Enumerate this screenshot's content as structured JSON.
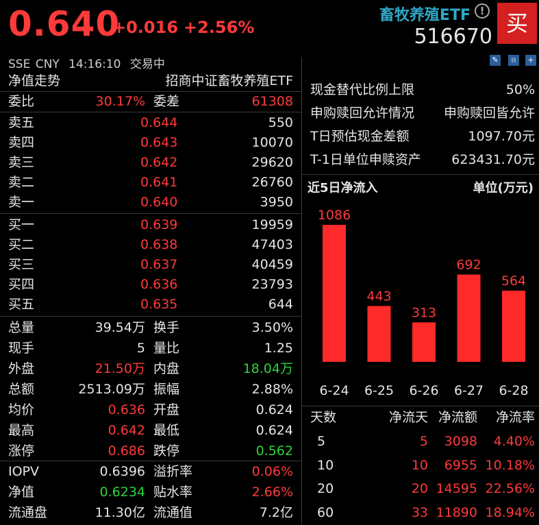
{
  "header": {
    "price": "0.640",
    "change": "+0.016",
    "change_pct": "+2.56%",
    "name": "畜牧养殖ETF",
    "code": "516670",
    "buy_label": "买",
    "info_icon": "info-icon",
    "exchange": "SSE",
    "currency": "CNY",
    "time": "14:16:10",
    "status": "交易中"
  },
  "left": {
    "tab_label": "净值走势",
    "fund_name": "招商中证畜牧养殖ETF",
    "weibi_label": "委比",
    "weibi": "30.17%",
    "weicha_label": "委差",
    "weicha": "61308",
    "asks": [
      {
        "label": "卖五",
        "price": "0.644",
        "vol": "550"
      },
      {
        "label": "卖四",
        "price": "0.643",
        "vol": "10070"
      },
      {
        "label": "卖三",
        "price": "0.642",
        "vol": "29620"
      },
      {
        "label": "卖二",
        "price": "0.641",
        "vol": "26760"
      },
      {
        "label": "卖一",
        "price": "0.640",
        "vol": "3950"
      }
    ],
    "bids": [
      {
        "label": "买一",
        "price": "0.639",
        "vol": "19959"
      },
      {
        "label": "买二",
        "price": "0.638",
        "vol": "47403"
      },
      {
        "label": "买三",
        "price": "0.637",
        "vol": "40459"
      },
      {
        "label": "买四",
        "price": "0.636",
        "vol": "23793"
      },
      {
        "label": "买五",
        "price": "0.635",
        "vol": "644"
      }
    ],
    "stats": [
      {
        "l1": "总量",
        "v1": "39.54万",
        "l2": "换手",
        "v2": "3.50%"
      },
      {
        "l1": "现手",
        "v1": "5",
        "l2": "量比",
        "v2": "1.25"
      },
      {
        "l1": "外盘",
        "v1": "21.50万",
        "l2": "内盘",
        "v2": "18.04万"
      },
      {
        "l1": "总额",
        "v1": "2513.09万",
        "l2": "振幅",
        "v2": "2.88%"
      },
      {
        "l1": "均价",
        "v1": "0.636",
        "l2": "开盘",
        "v2": "0.624"
      },
      {
        "l1": "最高",
        "v1": "0.642",
        "l2": "最低",
        "v2": "0.624"
      },
      {
        "l1": "涨停",
        "v1": "0.686",
        "l2": "跌停",
        "v2": "0.562"
      }
    ],
    "stats2": [
      {
        "l1": "IOPV",
        "v1": "0.6396",
        "l2": "溢折率",
        "v2": "0.06%"
      },
      {
        "l1": "净值",
        "v1": "0.6234",
        "l2": "贴水率",
        "v2": "2.66%"
      },
      {
        "l1": "流通盘",
        "v1": "11.30亿",
        "l2": "流通值",
        "v2": "7.2亿"
      }
    ]
  },
  "right": {
    "info": [
      {
        "label": "现金替代比例上限",
        "value": "50%"
      },
      {
        "label": "申购赎回允许情况",
        "value": "申购赎回皆允许"
      },
      {
        "label": "T日预估现金差额",
        "value": "1097.70元"
      },
      {
        "label": "T-1日单位申赎资产",
        "value": "623431.70元"
      }
    ],
    "flow_title": "近5日净流入",
    "flow_unit": "单位(万元)",
    "table_headers": [
      "天数",
      "净流天",
      "净流额",
      "净流率"
    ],
    "table_rows": [
      [
        "5",
        "5",
        "3098",
        "4.40%"
      ],
      [
        "10",
        "10",
        "6955",
        "10.18%"
      ],
      [
        "20",
        "20",
        "14595",
        "22.56%"
      ],
      [
        "60",
        "33",
        "11890",
        "18.94%"
      ]
    ]
  },
  "chart_data": {
    "type": "bar",
    "categories": [
      "6-24",
      "6-25",
      "6-26",
      "6-27",
      "6-28"
    ],
    "values": [
      1086,
      443,
      313,
      692,
      564
    ],
    "title": "近5日净流入",
    "ylabel": "单位(万元)",
    "ylim": [
      0,
      1086
    ],
    "grid": false,
    "color": "#ff2a2a"
  },
  "colors": {
    "up": "#ff3a3a",
    "down": "#2bd43b",
    "accent": "#2fa8c8",
    "buy": "#d42020"
  }
}
